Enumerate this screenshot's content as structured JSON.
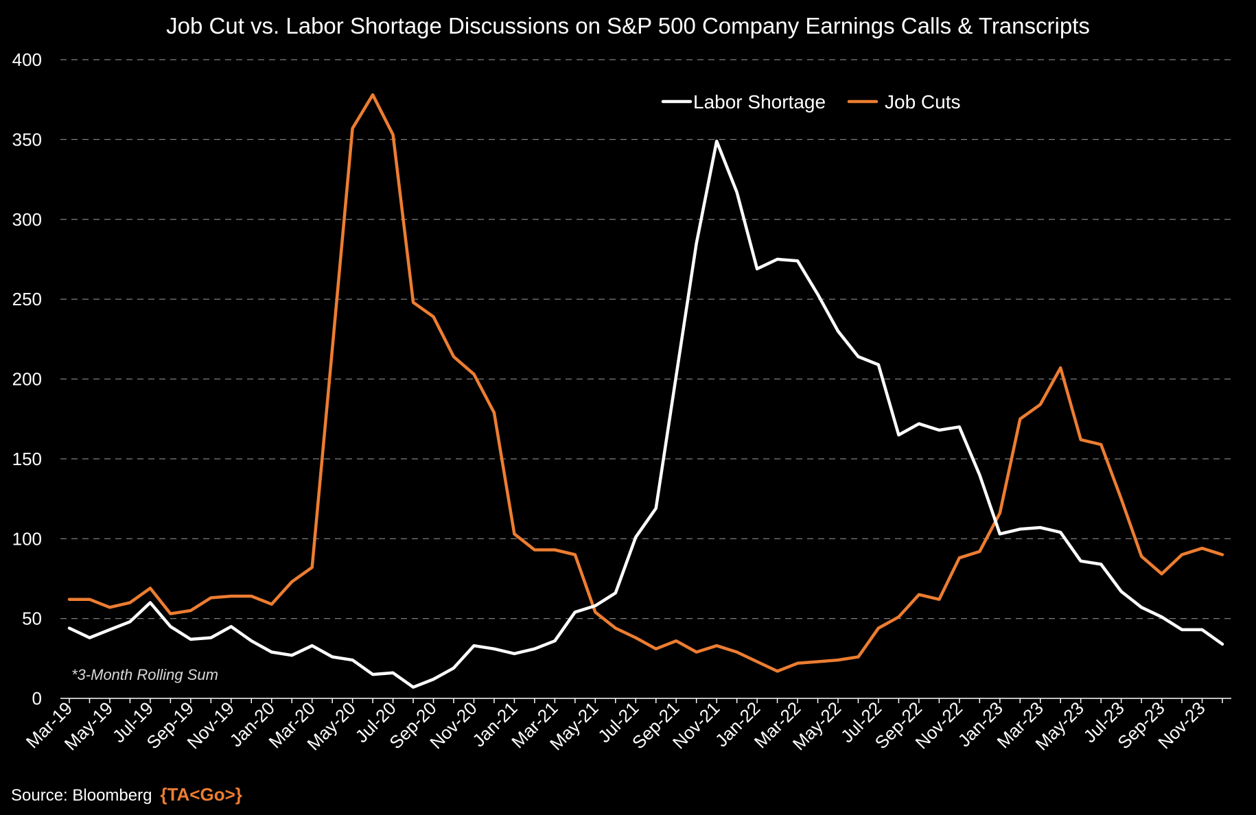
{
  "colors": {
    "background": "#000000",
    "labor_shortage": "#ffffff",
    "job_cuts": "#ed7d31",
    "gridline": "#7f7f7f"
  },
  "footer": {
    "source": "Source: Bloomberg",
    "ta_tag": "{TA<Go>}"
  },
  "chart_data": {
    "type": "line",
    "title": "Job Cut vs. Labor Shortage Discussions on S&P 500 Company Earnings Calls & Transcripts",
    "note": "*3-Month Rolling Sum",
    "xlabel": "",
    "ylabel": "",
    "ylim": [
      0,
      400
    ],
    "yticks": [
      0,
      50,
      100,
      150,
      200,
      250,
      300,
      350,
      400
    ],
    "grid": true,
    "legend_position": "top-center",
    "x": [
      "Mar-19",
      "Apr-19",
      "May-19",
      "Jun-19",
      "Jul-19",
      "Aug-19",
      "Sep-19",
      "Oct-19",
      "Nov-19",
      "Dec-19",
      "Jan-20",
      "Feb-20",
      "Mar-20",
      "Apr-20",
      "May-20",
      "Jun-20",
      "Jul-20",
      "Aug-20",
      "Sep-20",
      "Oct-20",
      "Nov-20",
      "Dec-20",
      "Jan-21",
      "Feb-21",
      "Mar-21",
      "Apr-21",
      "May-21",
      "Jun-21",
      "Jul-21",
      "Aug-21",
      "Sep-21",
      "Oct-21",
      "Nov-21",
      "Dec-21",
      "Jan-22",
      "Feb-22",
      "Mar-22",
      "Apr-22",
      "May-22",
      "Jun-22",
      "Jul-22",
      "Aug-22",
      "Sep-22",
      "Oct-22",
      "Nov-22",
      "Dec-22",
      "Jan-23",
      "Feb-23",
      "Mar-23",
      "Apr-23",
      "May-23",
      "Jun-23",
      "Jul-23",
      "Aug-23",
      "Sep-23",
      "Oct-23",
      "Nov-23",
      "Dec-23"
    ],
    "x_tick_labels": [
      "Mar-19",
      "May-19",
      "Jul-19",
      "Sep-19",
      "Nov-19",
      "Jan-20",
      "Mar-20",
      "May-20",
      "Jul-20",
      "Sep-20",
      "Nov-20",
      "Jan-21",
      "Mar-21",
      "May-21",
      "Jul-21",
      "Sep-21",
      "Nov-21",
      "Jan-22",
      "Mar-22",
      "May-22",
      "Jul-22",
      "Sep-22",
      "Nov-22",
      "Jan-23",
      "Mar-23",
      "May-23",
      "Jul-23",
      "Sep-23",
      "Nov-23"
    ],
    "series": [
      {
        "name": "Labor Shortage",
        "color": "#ffffff",
        "values": [
          44,
          38,
          43,
          48,
          60,
          45,
          37,
          38,
          45,
          36,
          29,
          27,
          33,
          26,
          24,
          15,
          16,
          7,
          12,
          19,
          33,
          31,
          28,
          31,
          36,
          54,
          58,
          66,
          101,
          119,
          202,
          285,
          349,
          317,
          269,
          275,
          274,
          253,
          230,
          214,
          209,
          165,
          172,
          168,
          170,
          140,
          103,
          106,
          107,
          104,
          86,
          84,
          67,
          57,
          51,
          43,
          43,
          34
        ]
      },
      {
        "name": "Job Cuts",
        "color": "#ed7d31",
        "values": [
          62,
          62,
          57,
          60,
          69,
          53,
          55,
          63,
          64,
          64,
          59,
          73,
          82,
          219,
          357,
          378,
          353,
          248,
          239,
          214,
          203,
          179,
          103,
          93,
          93,
          90,
          54,
          44,
          38,
          31,
          36,
          29,
          33,
          29,
          23,
          17,
          22,
          23,
          24,
          26,
          44,
          51,
          65,
          62,
          88,
          92,
          116,
          175,
          184,
          207,
          162,
          159,
          125,
          89,
          78,
          90,
          94,
          90
        ]
      }
    ]
  }
}
